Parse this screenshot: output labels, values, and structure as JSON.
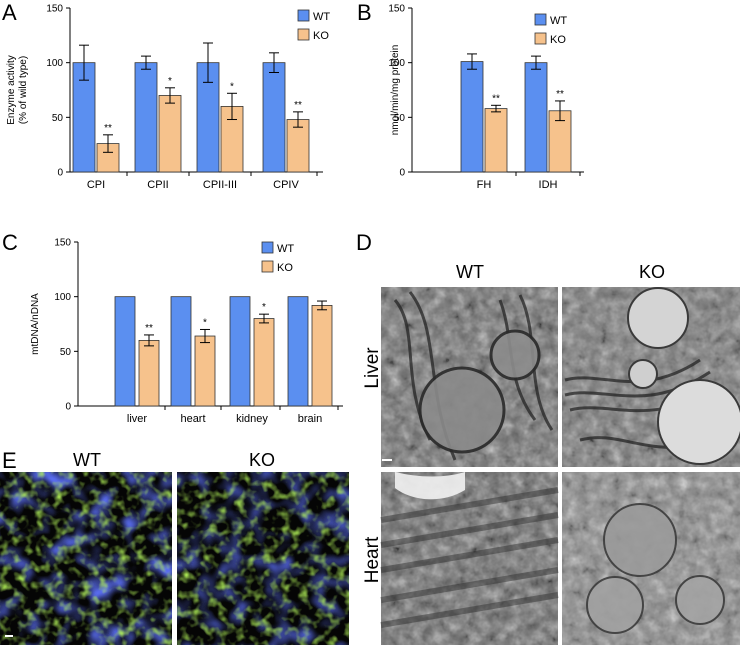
{
  "panels": {
    "A": "A",
    "B": "B",
    "C": "C",
    "D": "D",
    "E": "E"
  },
  "colors": {
    "wt": "#5b8ff0",
    "ko": "#f6c28c",
    "edge": "#333333"
  },
  "chart_data": [
    {
      "id": "A",
      "type": "bar",
      "ylabel_lines": [
        "Enzyme activity",
        "(% of wild type)"
      ],
      "ylim": [
        0,
        150
      ],
      "yticks": [
        0,
        50,
        100,
        150
      ],
      "categories": [
        "CPI",
        "CPII",
        "CPII-III",
        "CPIV"
      ],
      "series": [
        {
          "name": "WT",
          "values": [
            100,
            100,
            100,
            100
          ],
          "errors": [
            16,
            6,
            18,
            9
          ]
        },
        {
          "name": "KO",
          "values": [
            26,
            70,
            60,
            48
          ],
          "errors": [
            8,
            7,
            12,
            7
          ],
          "significance": [
            "**",
            "*",
            "*",
            "**"
          ]
        }
      ],
      "legend": [
        "WT",
        "KO"
      ],
      "legend_position": "top-right"
    },
    {
      "id": "B",
      "type": "bar",
      "ylabel_lines": [
        "nmol/min/mg protein"
      ],
      "ylim": [
        0,
        150
      ],
      "yticks": [
        0,
        50,
        100,
        150
      ],
      "categories": [
        "FH",
        "IDH"
      ],
      "series": [
        {
          "name": "WT",
          "values": [
            101,
            100
          ],
          "errors": [
            7,
            6
          ]
        },
        {
          "name": "KO",
          "values": [
            58,
            56
          ],
          "errors": [
            3,
            9
          ],
          "significance": [
            "**",
            "**"
          ]
        }
      ],
      "legend": [
        "WT",
        "KO"
      ],
      "legend_position": "top-right"
    },
    {
      "id": "C",
      "type": "bar",
      "ylabel_lines": [
        "mtDNA/nDNA"
      ],
      "ylim": [
        0,
        150
      ],
      "yticks": [
        0,
        50,
        100,
        150
      ],
      "categories": [
        "liver",
        "heart",
        "kidney",
        "brain"
      ],
      "series": [
        {
          "name": "WT",
          "values": [
            100,
            100,
            100,
            100
          ],
          "errors": [
            0,
            0,
            0,
            0
          ]
        },
        {
          "name": "KO",
          "values": [
            60,
            64,
            80,
            92
          ],
          "errors": [
            5,
            6,
            4,
            4
          ],
          "significance": [
            "**",
            "*",
            "*",
            ""
          ]
        }
      ],
      "legend": [
        "WT",
        "KO"
      ],
      "legend_position": "top-right"
    }
  ],
  "panel_d": {
    "col_labels": [
      "WT",
      "KO"
    ],
    "row_labels": [
      "Liver",
      "Heart"
    ]
  },
  "panel_e": {
    "col_labels": [
      "WT",
      "KO"
    ]
  }
}
